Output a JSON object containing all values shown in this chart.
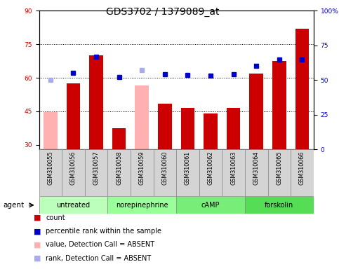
{
  "title": "GDS3702 / 1379089_at",
  "samples": [
    "GSM310055",
    "GSM310056",
    "GSM310057",
    "GSM310058",
    "GSM310059",
    "GSM310060",
    "GSM310061",
    "GSM310062",
    "GSM310063",
    "GSM310064",
    "GSM310065",
    "GSM310066"
  ],
  "bar_values": [
    44.5,
    57.5,
    70.0,
    37.5,
    56.5,
    48.5,
    46.5,
    44.0,
    46.5,
    62.0,
    67.5,
    82.0
  ],
  "bar_colors": [
    "#ffb0b0",
    "#cc0000",
    "#cc0000",
    "#cc0000",
    "#ffb0b0",
    "#cc0000",
    "#cc0000",
    "#cc0000",
    "#cc0000",
    "#cc0000",
    "#cc0000",
    "#cc0000"
  ],
  "dot_values_right": [
    50.0,
    55.0,
    67.0,
    52.0,
    57.0,
    54.0,
    53.5,
    53.0,
    54.0,
    60.0,
    65.0,
    65.0
  ],
  "dot_colors": [
    "#aaaaee",
    "#0000cc",
    "#0000cc",
    "#0000cc",
    "#aaaaee",
    "#0000cc",
    "#0000cc",
    "#0000cc",
    "#0000cc",
    "#0000cc",
    "#0000cc",
    "#0000cc"
  ],
  "ylim_left": [
    28,
    90
  ],
  "ylim_right": [
    0,
    100
  ],
  "yticks_left": [
    30,
    45,
    60,
    75,
    90
  ],
  "yticks_right": [
    0,
    25,
    50,
    75,
    100
  ],
  "ytick_labels_right": [
    "0",
    "25",
    "50",
    "75",
    "100%"
  ],
  "hlines": [
    45,
    60,
    75
  ],
  "group_labels": [
    "untreated",
    "norepinephrine",
    "cAMP",
    "forskolin"
  ],
  "group_ranges": [
    [
      0,
      3
    ],
    [
      3,
      6
    ],
    [
      6,
      9
    ],
    [
      9,
      12
    ]
  ],
  "group_colors": [
    "#bbffbb",
    "#99ff99",
    "#77ee77",
    "#55dd55"
  ],
  "bar_width": 0.6,
  "title_fontsize": 10,
  "tick_fontsize": 6.5,
  "legend_items": [
    {
      "color": "#cc0000",
      "label": "count"
    },
    {
      "color": "#0000cc",
      "label": "percentile rank within the sample"
    },
    {
      "color": "#ffb0b0",
      "label": "value, Detection Call = ABSENT"
    },
    {
      "color": "#aaaaee",
      "label": "rank, Detection Call = ABSENT"
    }
  ]
}
